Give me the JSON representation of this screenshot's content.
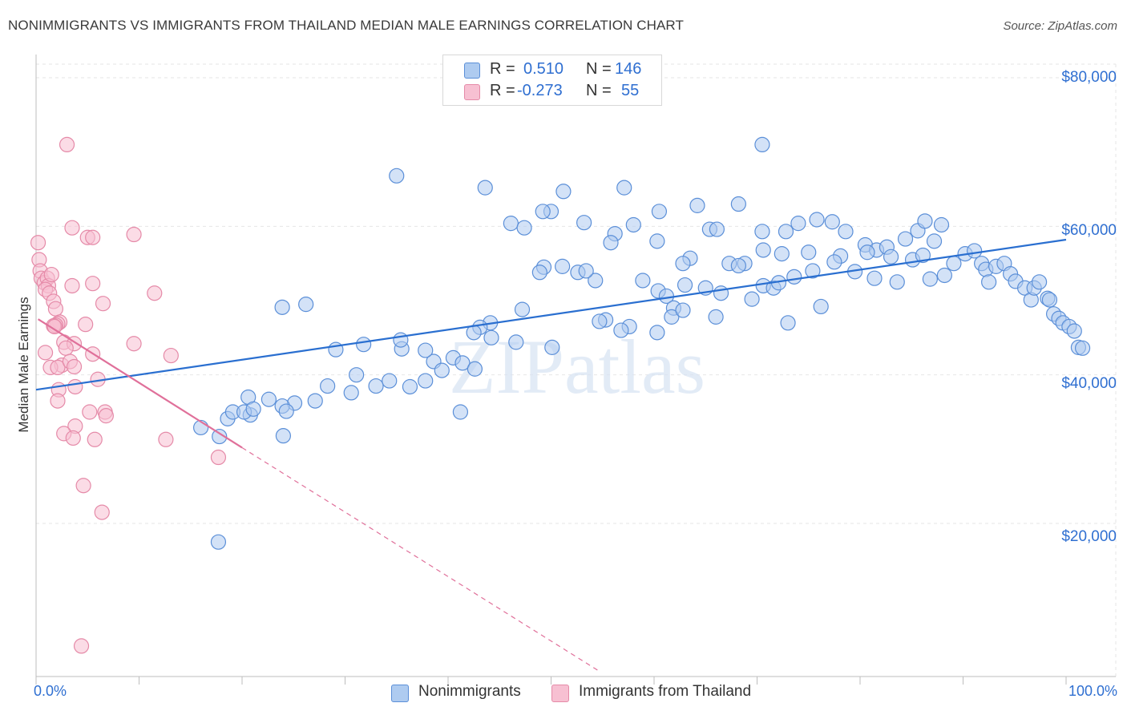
{
  "title": "NONIMMIGRANTS VS IMMIGRANTS FROM THAILAND MEDIAN MALE EARNINGS CORRELATION CHART",
  "source": "Source: ZipAtlas.com",
  "watermark": "ZIPatlas",
  "colors": {
    "blue_fill": "#aecbf0",
    "blue_stroke": "#5b8fd8",
    "blue_line": "#2a6fd0",
    "pink_fill": "#f7c0d2",
    "pink_stroke": "#e58aa8",
    "pink_line": "#e0709a",
    "tick_text": "#2f6fd1",
    "grid": "#e6e6e6"
  },
  "legend_stats": [
    {
      "swatch": "blue",
      "r_label": "R =",
      "r_value": "0.510",
      "n_label": "N =",
      "n_value": "146"
    },
    {
      "swatch": "pink",
      "r_label": "R =",
      "r_value": "-0.273",
      "n_label": "N =",
      "n_value": "55"
    }
  ],
  "chart_data": {
    "type": "scatter",
    "title": "NONIMMIGRANTS VS IMMIGRANTS FROM THAILAND MEDIAN MALE EARNINGS CORRELATION CHART",
    "xlabel": "",
    "ylabel": "Median Male Earnings",
    "xlim": [
      0,
      100
    ],
    "ylim": [
      0,
      82000
    ],
    "x_tick_labels": [
      "0.0%",
      "100.0%"
    ],
    "y_ticks": [
      {
        "value": 20000,
        "label": "$20,000"
      },
      {
        "value": 40000,
        "label": "$40,000"
      },
      {
        "value": 60000,
        "label": "$60,000"
      },
      {
        "value": 80000,
        "label": "$80,000"
      }
    ],
    "grid": true,
    "legend_position": "bottom",
    "series": [
      {
        "name": "Nonimmigrants",
        "color": "blue",
        "trendline": {
          "x": [
            0,
            100
          ],
          "y": [
            38000,
            58200
          ]
        },
        "points": [
          [
            70.5,
            71000
          ],
          [
            35,
            66800
          ],
          [
            43.6,
            65200
          ],
          [
            51.2,
            64700
          ],
          [
            57.1,
            65200
          ],
          [
            64.2,
            62800
          ],
          [
            68.2,
            63000
          ],
          [
            60.5,
            62000
          ],
          [
            50,
            62000
          ],
          [
            49.2,
            62000
          ],
          [
            46.1,
            60400
          ],
          [
            47.4,
            59800
          ],
          [
            53.2,
            60500
          ],
          [
            58,
            60200
          ],
          [
            56.2,
            59000
          ],
          [
            55.8,
            57800
          ],
          [
            60.3,
            58000
          ],
          [
            65.4,
            59600
          ],
          [
            66.1,
            59600
          ],
          [
            70.5,
            59300
          ],
          [
            72.8,
            59300
          ],
          [
            74,
            60400
          ],
          [
            75.8,
            60900
          ],
          [
            77.3,
            60600
          ],
          [
            78.6,
            59300
          ],
          [
            80.5,
            57500
          ],
          [
            81.6,
            56800
          ],
          [
            82.6,
            57200
          ],
          [
            84.4,
            58300
          ],
          [
            85.6,
            59400
          ],
          [
            86.3,
            60700
          ],
          [
            87.2,
            58000
          ],
          [
            87.9,
            60200
          ],
          [
            85.1,
            55500
          ],
          [
            86.1,
            56100
          ],
          [
            83,
            55900
          ],
          [
            80.7,
            56500
          ],
          [
            78.1,
            56000
          ],
          [
            75,
            56500
          ],
          [
            72.4,
            56300
          ],
          [
            70.6,
            56800
          ],
          [
            68.8,
            55000
          ],
          [
            67.3,
            55000
          ],
          [
            63.5,
            55700
          ],
          [
            62.8,
            55000
          ],
          [
            58.9,
            52700
          ],
          [
            54.3,
            52700
          ],
          [
            52.6,
            53800
          ],
          [
            49.3,
            54500
          ],
          [
            48.9,
            53800
          ],
          [
            51.1,
            54600
          ],
          [
            53.4,
            54000
          ],
          [
            60.4,
            51300
          ],
          [
            63,
            52100
          ],
          [
            65,
            51700
          ],
          [
            66.5,
            51000
          ],
          [
            68.2,
            54700
          ],
          [
            69.5,
            50200
          ],
          [
            70.6,
            52000
          ],
          [
            71.6,
            51700
          ],
          [
            72.1,
            52400
          ],
          [
            73.6,
            53200
          ],
          [
            75.4,
            54000
          ],
          [
            77.5,
            55200
          ],
          [
            79.5,
            53900
          ],
          [
            81.4,
            53000
          ],
          [
            83.6,
            52500
          ],
          [
            86.8,
            52900
          ],
          [
            88.2,
            53400
          ],
          [
            89.1,
            55000
          ],
          [
            90.2,
            56300
          ],
          [
            91.1,
            56700
          ],
          [
            91.8,
            55000
          ],
          [
            92.2,
            54200
          ],
          [
            92.5,
            52500
          ],
          [
            93.2,
            54600
          ],
          [
            94,
            55000
          ],
          [
            94.6,
            53600
          ],
          [
            95.1,
            52600
          ],
          [
            96,
            51700
          ],
          [
            96.6,
            50100
          ],
          [
            96.9,
            51700
          ],
          [
            97.4,
            52500
          ],
          [
            98.2,
            50300
          ],
          [
            98.4,
            50100
          ],
          [
            98.8,
            48200
          ],
          [
            99.3,
            47600
          ],
          [
            99.7,
            47000
          ],
          [
            100.3,
            46500
          ],
          [
            100.8,
            45900
          ],
          [
            101.2,
            43700
          ],
          [
            101.6,
            43600
          ],
          [
            73,
            47000
          ],
          [
            76.2,
            49200
          ],
          [
            61.2,
            50600
          ],
          [
            61.9,
            49000
          ],
          [
            61.7,
            47800
          ],
          [
            62.8,
            48700
          ],
          [
            66,
            47800
          ],
          [
            57.6,
            46500
          ],
          [
            55.3,
            47400
          ],
          [
            54.7,
            47200
          ],
          [
            60.3,
            45700
          ],
          [
            47.2,
            48800
          ],
          [
            44.1,
            47000
          ],
          [
            43.1,
            46400
          ],
          [
            42.5,
            45700
          ],
          [
            44.2,
            45000
          ],
          [
            46.6,
            44400
          ],
          [
            50.1,
            43700
          ],
          [
            40.5,
            42300
          ],
          [
            41.4,
            41600
          ],
          [
            38.6,
            41800
          ],
          [
            42.6,
            40800
          ],
          [
            37.8,
            39200
          ],
          [
            36.3,
            38400
          ],
          [
            34.3,
            39200
          ],
          [
            31.1,
            40000
          ],
          [
            33,
            38500
          ],
          [
            28.3,
            38500
          ],
          [
            30.6,
            37600
          ],
          [
            27.1,
            36500
          ],
          [
            25.1,
            36200
          ],
          [
            23.9,
            35800
          ],
          [
            22.6,
            36700
          ],
          [
            20.6,
            37000
          ],
          [
            20.8,
            34600
          ],
          [
            18.6,
            34100
          ],
          [
            19.1,
            35000
          ],
          [
            20.2,
            35000
          ],
          [
            21.1,
            35400
          ],
          [
            24.3,
            35100
          ],
          [
            24,
            31800
          ],
          [
            16,
            32900
          ],
          [
            17.8,
            31700
          ],
          [
            35.5,
            43500
          ],
          [
            29.1,
            43400
          ],
          [
            23.9,
            49100
          ],
          [
            26.2,
            49500
          ],
          [
            31.8,
            44100
          ],
          [
            35.4,
            44700
          ],
          [
            37.8,
            43300
          ],
          [
            39.4,
            40600
          ],
          [
            41.2,
            35000
          ],
          [
            17.7,
            17500
          ],
          [
            56.8,
            46000
          ]
        ]
      },
      {
        "name": "Immigrants from Thailand",
        "color": "pink",
        "trendline": {
          "x": [
            0.2,
            20
          ],
          "y": [
            47500,
            30200
          ]
        },
        "trendline_extension": {
          "x": [
            20,
            54.8
          ],
          "y": [
            30200,
            0
          ]
        },
        "points": [
          [
            3,
            71000
          ],
          [
            3.5,
            59800
          ],
          [
            5,
            58500
          ],
          [
            5.5,
            58500
          ],
          [
            9.5,
            58900
          ],
          [
            0.2,
            57800
          ],
          [
            0.3,
            55500
          ],
          [
            0.4,
            54000
          ],
          [
            0.5,
            53000
          ],
          [
            0.8,
            52400
          ],
          [
            1.1,
            53000
          ],
          [
            1.2,
            52000
          ],
          [
            0.9,
            51500
          ],
          [
            1.3,
            51000
          ],
          [
            1.5,
            53500
          ],
          [
            3.5,
            52000
          ],
          [
            5.5,
            52300
          ],
          [
            11.5,
            51000
          ],
          [
            1.7,
            49900
          ],
          [
            6.5,
            49600
          ],
          [
            1.9,
            48900
          ],
          [
            2.3,
            47100
          ],
          [
            2.1,
            46900
          ],
          [
            1.9,
            46700
          ],
          [
            1.7,
            46600
          ],
          [
            1.8,
            46500
          ],
          [
            4.8,
            46800
          ],
          [
            2.7,
            44400
          ],
          [
            3.7,
            44200
          ],
          [
            2.9,
            43600
          ],
          [
            9.5,
            44200
          ],
          [
            0.9,
            43000
          ],
          [
            5.5,
            42800
          ],
          [
            13.1,
            42600
          ],
          [
            2.5,
            41300
          ],
          [
            1.4,
            41000
          ],
          [
            2.1,
            41000
          ],
          [
            3.3,
            41800
          ],
          [
            3.7,
            41100
          ],
          [
            6,
            39400
          ],
          [
            2.2,
            38000
          ],
          [
            3.8,
            38400
          ],
          [
            2.1,
            36500
          ],
          [
            5.2,
            35000
          ],
          [
            6.7,
            35000
          ],
          [
            6.8,
            34500
          ],
          [
            3.8,
            33100
          ],
          [
            2.7,
            32100
          ],
          [
            3.6,
            31500
          ],
          [
            5.7,
            31300
          ],
          [
            12.6,
            31300
          ],
          [
            17.7,
            28900
          ],
          [
            4.6,
            25100
          ],
          [
            6.4,
            21500
          ],
          [
            4.4,
            3500
          ]
        ]
      }
    ]
  }
}
